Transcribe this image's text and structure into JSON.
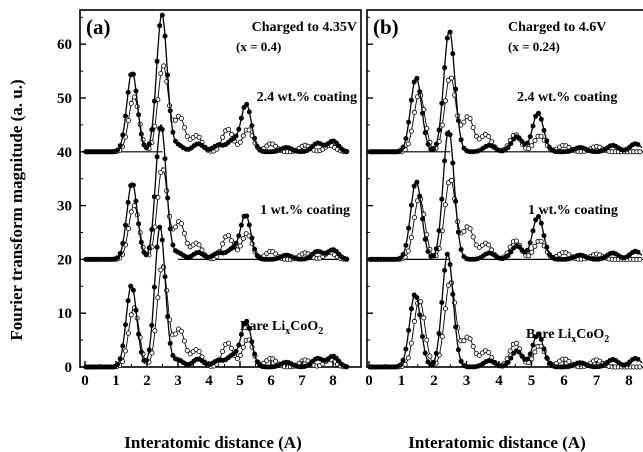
{
  "chart_data": {
    "type": "line",
    "ylabel": "Fourier transform magnitude (a. u.)",
    "xlabel": "Interatomic distance (A)",
    "xlim": [
      0,
      8.5
    ],
    "ylim": [
      0,
      66
    ],
    "xticks": [
      0,
      1,
      2,
      3,
      4,
      5,
      6,
      7,
      8
    ],
    "yticks": [
      0,
      10,
      20,
      30,
      40,
      50,
      60
    ],
    "grid": false,
    "panels": [
      {
        "tag": "(a)",
        "title": "Charged to 4.35V",
        "subtitle": "(x = 0.4)",
        "baselines": [
          {
            "y": 40,
            "x_range": [
              0,
              2.5
            ]
          },
          {
            "y": 20,
            "x_range": [
              3.0,
              8.5
            ]
          }
        ],
        "curves": [
          {
            "label": "2.4 wt.% coating",
            "offset": 40,
            "filled": {
              "peaks": [
                [
                  1.52,
                  14.8
                ],
                [
                  2.48,
                  25.5
                ],
                [
                  3.0,
                  1.2
                ],
                [
                  3.65,
                  1.5
                ],
                [
                  4.3,
                  1.2
                ],
                [
                  4.75,
                  2.0
                ],
                [
                  5.2,
                  8.8
                ],
                [
                  6.5,
                  0.8
                ],
                [
                  7.5,
                  1.6
                ],
                [
                  8.0,
                  2.0
                ]
              ]
            },
            "open": {
              "peaks": [
                [
                  1.58,
                  10.2
                ],
                [
                  2.52,
                  16.0
                ],
                [
                  3.05,
                  6.5
                ],
                [
                  3.6,
                  3.0
                ],
                [
                  4.6,
                  4.2
                ],
                [
                  5.25,
                  4.2
                ],
                [
                  6.0,
                  1.5
                ],
                [
                  7.1,
                  1.2
                ],
                [
                  7.9,
                  1.2
                ]
              ]
            }
          },
          {
            "label": "1 wt.% coating",
            "offset": 20,
            "filled": {
              "peaks": [
                [
                  1.52,
                  14.2
                ],
                [
                  2.45,
                  25.0
                ],
                [
                  3.0,
                  1.2
                ],
                [
                  3.65,
                  1.3
                ],
                [
                  4.3,
                  1.2
                ],
                [
                  4.75,
                  1.8
                ],
                [
                  5.18,
                  8.2
                ],
                [
                  6.5,
                  0.8
                ],
                [
                  7.5,
                  1.5
                ],
                [
                  8.0,
                  1.8
                ]
              ]
            },
            "open": {
              "peaks": [
                [
                  1.58,
                  10.0
                ],
                [
                  2.5,
                  17.0
                ],
                [
                  3.05,
                  7.0
                ],
                [
                  3.6,
                  3.0
                ],
                [
                  4.6,
                  4.5
                ],
                [
                  5.22,
                  4.8
                ],
                [
                  6.0,
                  1.5
                ],
                [
                  7.1,
                  1.2
                ],
                [
                  7.9,
                  1.3
                ]
              ]
            }
          },
          {
            "label": "Bare Li",
            "label_sub": "x",
            "label_after": "CoO",
            "label_sub2": "2",
            "offset": 0,
            "filled": {
              "peaks": [
                [
                  1.5,
                  15.2
                ],
                [
                  2.42,
                  26.0
                ],
                [
                  3.0,
                  1.3
                ],
                [
                  3.65,
                  1.5
                ],
                [
                  4.3,
                  1.2
                ],
                [
                  4.75,
                  2.0
                ],
                [
                  5.2,
                  8.5
                ],
                [
                  6.5,
                  0.9
                ],
                [
                  7.5,
                  1.6
                ],
                [
                  8.0,
                  2.0
                ]
              ]
            },
            "open": {
              "peaks": [
                [
                  1.58,
                  11.0
                ],
                [
                  2.5,
                  19.0
                ],
                [
                  3.05,
                  7.0
                ],
                [
                  3.6,
                  3.2
                ],
                [
                  4.6,
                  4.5
                ],
                [
                  5.25,
                  5.2
                ],
                [
                  6.0,
                  1.6
                ],
                [
                  7.1,
                  1.3
                ],
                [
                  7.9,
                  1.4
                ]
              ]
            }
          }
        ]
      },
      {
        "tag": "(b)",
        "title": "Charged to 4.6V",
        "subtitle": "(x = 0.24)",
        "baselines": [
          {
            "y": 40,
            "x_range": [
              0,
              2.5
            ]
          },
          {
            "y": 40,
            "x_range": [
              3.0,
              8.5
            ]
          },
          {
            "y": 20,
            "x_range": [
              0,
              2.5
            ]
          },
          {
            "y": 20,
            "x_range": [
              3.0,
              8.5
            ]
          }
        ],
        "curves": [
          {
            "label": "2.4 wt.% coating",
            "offset": 40,
            "filled": {
              "peaks": [
                [
                  1.45,
                  13.8
                ],
                [
                  2.47,
                  22.5
                ],
                [
                  3.7,
                  1.2
                ],
                [
                  4.55,
                  2.8
                ],
                [
                  5.2,
                  7.2
                ],
                [
                  6.5,
                  0.8
                ],
                [
                  7.5,
                  1.2
                ],
                [
                  8.2,
                  1.5
                ]
              ]
            },
            "open": {
              "peaks": [
                [
                  1.55,
                  10.8
                ],
                [
                  2.5,
                  14.0
                ],
                [
                  3.05,
                  6.5
                ],
                [
                  3.6,
                  3.2
                ],
                [
                  4.5,
                  3.2
                ],
                [
                  5.25,
                  3.0
                ],
                [
                  6.0,
                  1.2
                ],
                [
                  7.0,
                  1.0
                ]
              ]
            }
          },
          {
            "label": "1 wt.% coating",
            "offset": 20,
            "filled": {
              "peaks": [
                [
                  1.45,
                  14.5
                ],
                [
                  2.45,
                  24.0
                ],
                [
                  3.7,
                  1.2
                ],
                [
                  4.55,
                  2.5
                ],
                [
                  5.2,
                  8.0
                ],
                [
                  6.5,
                  0.8
                ],
                [
                  7.5,
                  1.2
                ],
                [
                  8.2,
                  1.5
                ]
              ]
            },
            "open": {
              "peaks": [
                [
                  1.55,
                  11.5
                ],
                [
                  2.5,
                  15.0
                ],
                [
                  3.05,
                  6.0
                ],
                [
                  3.6,
                  3.0
                ],
                [
                  4.5,
                  3.5
                ],
                [
                  5.25,
                  3.5
                ],
                [
                  6.0,
                  1.3
                ],
                [
                  7.0,
                  1.0
                ]
              ]
            }
          },
          {
            "label": "Bare Li",
            "label_sub": "x",
            "label_after": "CoO",
            "label_sub2": "2",
            "offset": 0,
            "filled": {
              "peaks": [
                [
                  1.42,
                  13.6
                ],
                [
                  2.42,
                  21.0
                ],
                [
                  3.7,
                  1.2
                ],
                [
                  4.55,
                  3.0
                ],
                [
                  5.2,
                  6.1
                ],
                [
                  6.5,
                  0.8
                ],
                [
                  7.5,
                  1.4
                ],
                [
                  8.2,
                  1.6
                ]
              ]
            },
            "open": {
              "peaks": [
                [
                  1.55,
                  12.5
                ],
                [
                  2.5,
                  16.0
                ],
                [
                  3.05,
                  5.5
                ],
                [
                  3.6,
                  3.0
                ],
                [
                  4.5,
                  4.5
                ],
                [
                  5.25,
                  4.0
                ],
                [
                  6.0,
                  1.5
                ],
                [
                  7.0,
                  1.3
                ]
              ]
            }
          }
        ]
      }
    ]
  }
}
